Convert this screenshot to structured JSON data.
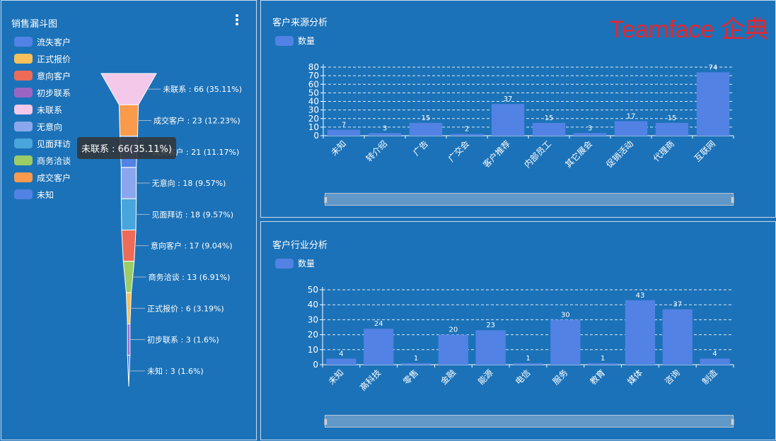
{
  "watermark": "Teamface 企典",
  "funnel_panel": {
    "title": "销售漏斗图",
    "legend": [
      {
        "label": "流失客户",
        "color": "#5182e4"
      },
      {
        "label": "正式报价",
        "color": "#f7c05b"
      },
      {
        "label": "意向客户",
        "color": "#ee6b57"
      },
      {
        "label": "初步联系",
        "color": "#9c65c4"
      },
      {
        "label": "未联系",
        "color": "#f4c8e8"
      },
      {
        "label": "无意向",
        "color": "#8aa7ee"
      },
      {
        "label": "见面拜访",
        "color": "#49a6dc"
      },
      {
        "label": "商务洽谈",
        "color": "#9bcc66"
      },
      {
        "label": "成交客户",
        "color": "#fa9a4c"
      },
      {
        "label": "未知",
        "color": "#5182e4"
      }
    ],
    "tooltip": "未联系 : 66(35.11%)"
  },
  "source_panel": {
    "title": "客户来源分析",
    "legend_label": "数量"
  },
  "industry_panel": {
    "title": "客户行业分析",
    "legend_label": "数量"
  },
  "chart_data": [
    {
      "type": "funnel",
      "title": "销售漏斗图",
      "categories": [
        "未联系",
        "成交客户",
        "流失客户",
        "无意向",
        "见面拜访",
        "意向客户",
        "商务洽谈",
        "正式报价",
        "初步联系",
        "未知"
      ],
      "values": [
        66,
        23,
        21,
        18,
        18,
        17,
        13,
        6,
        3,
        3
      ],
      "labels": [
        "未联系 : 66 (35.11%)",
        "成交客户 : 23 (12.23%)",
        "流失客户 : 21 (11.17%)",
        "无意向 : 18 (9.57%)",
        "见面拜访 : 18 (9.57%)",
        "意向客户 : 17 (9.04%)",
        "商务洽谈 : 13 (6.91%)",
        "正式报价 : 6 (3.19%)",
        "初步联系 : 3 (1.6%)",
        "未知 : 3 (1.6%)"
      ],
      "colors": [
        "#f4c8e8",
        "#fa9a4c",
        "#5182e4",
        "#8aa7ee",
        "#49a6dc",
        "#ee6b57",
        "#9bcc66",
        "#f7c05b",
        "#9c65c4",
        "#5182e4"
      ],
      "legend_position": "left"
    },
    {
      "type": "bar",
      "title": "客户来源分析",
      "categories": [
        "未知",
        "转介绍",
        "广告",
        "广交会",
        "客户推荐",
        "内部员工",
        "其它展会",
        "促销活动",
        "代理商",
        "互联网"
      ],
      "series": [
        {
          "name": "数量",
          "values": [
            7,
            3,
            15,
            2,
            37,
            15,
            3,
            17,
            15,
            74
          ],
          "color": "#5182e4"
        }
      ],
      "ylim": [
        0,
        80
      ],
      "yticks": [
        0,
        10,
        20,
        30,
        40,
        50,
        60,
        70,
        80
      ],
      "grid": true,
      "legend_position": "top-left"
    },
    {
      "type": "bar",
      "title": "客户行业分析",
      "categories": [
        "未知",
        "高科技",
        "零售",
        "金融",
        "能源",
        "电信",
        "服务",
        "教育",
        "媒体",
        "咨询",
        "制造"
      ],
      "series": [
        {
          "name": "数量",
          "values": [
            4,
            24,
            1,
            20,
            23,
            1,
            30,
            1,
            43,
            37,
            4
          ],
          "color": "#5182e4"
        }
      ],
      "ylim": [
        0,
        50
      ],
      "yticks": [
        0,
        10,
        20,
        30,
        40,
        50
      ],
      "grid": true,
      "legend_position": "top-left"
    }
  ]
}
